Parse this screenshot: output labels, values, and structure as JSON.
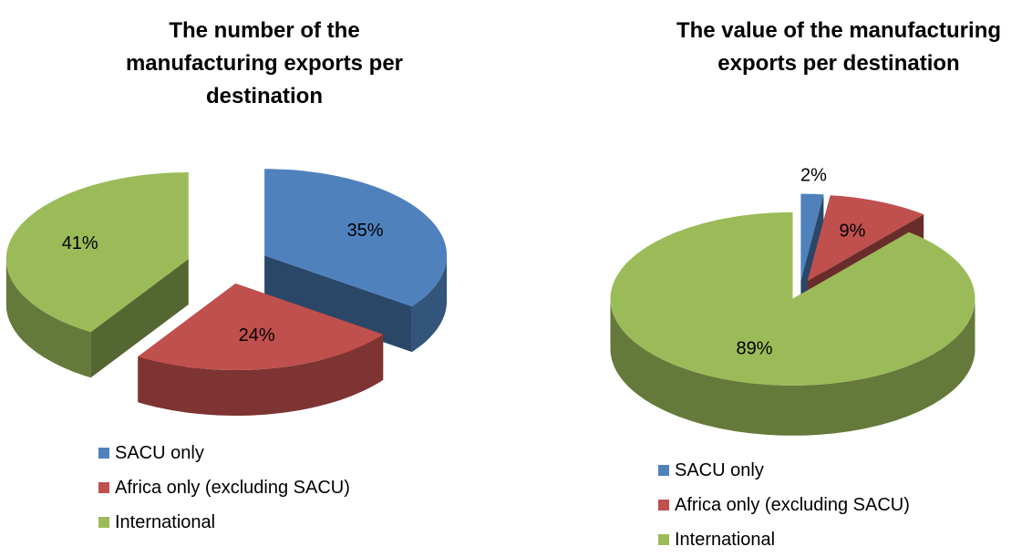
{
  "chart_data": [
    {
      "type": "pie",
      "title": "The number of the manufacturing exports per destination",
      "categories": [
        "SACU only",
        "Africa only (excluding SACU)",
        "International"
      ],
      "values": [
        35,
        24,
        41
      ],
      "value_labels": [
        "35%",
        "24%",
        "41%"
      ],
      "colors": [
        "#4f81bd",
        "#c0504d",
        "#9bbb59"
      ]
    },
    {
      "type": "pie",
      "title": "The value of the manufacturing exports per destination",
      "categories": [
        "SACU only",
        "Africa only (excluding SACU)",
        "International"
      ],
      "values": [
        2,
        9,
        89
      ],
      "value_labels": [
        "2%",
        "9%",
        "89%"
      ],
      "colors": [
        "#4f81bd",
        "#c0504d",
        "#9bbb59"
      ]
    }
  ]
}
